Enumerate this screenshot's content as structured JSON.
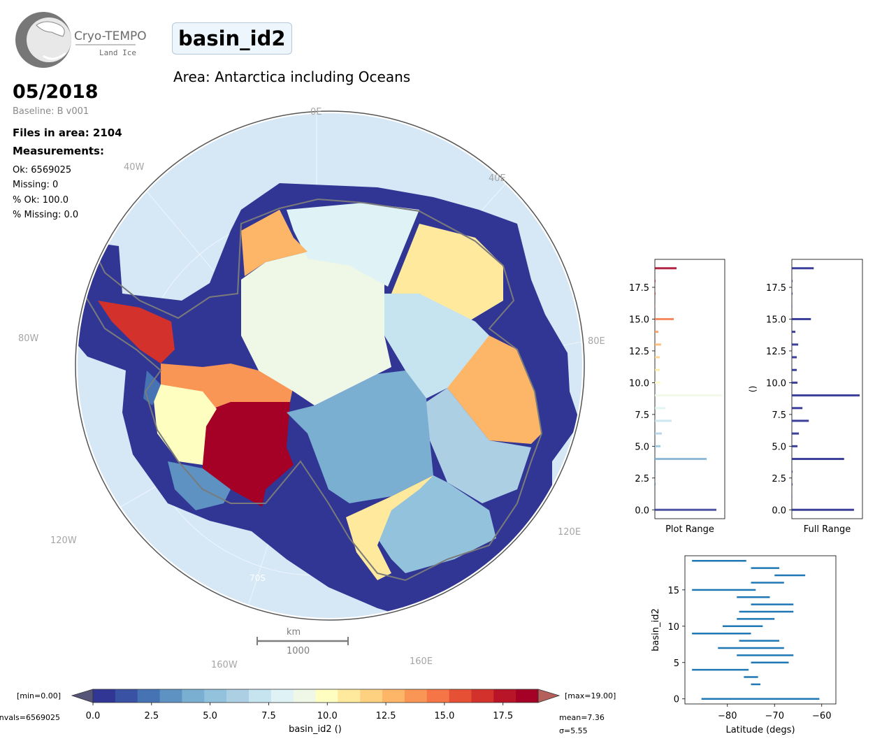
{
  "logo": {
    "name": "Cryo-TEMPO",
    "subtitle": "Land Ice"
  },
  "title": "basin_id2",
  "area_title": "Area: Antarctica including Oceans",
  "date": "05/2018",
  "baseline": "Baseline: B v001",
  "files_in_area": "Files in area: 2104",
  "measurements_label": "Measurements:",
  "stats": [
    "Ok: 6569025",
    "Missing: 0",
    "% Ok: 100.0",
    "% Missing: 0.0"
  ],
  "map": {
    "lon_labels": [
      "0E",
      "40E",
      "80E",
      "120E",
      "160E",
      "160W",
      "120W",
      "80W",
      "40W"
    ],
    "lat_label": "70S",
    "scale_bar": {
      "unit": "km",
      "value": "1000"
    },
    "colors": {
      "ocean": "#d6e7f5",
      "track": "#313695",
      "coast": "#7a7a7a"
    }
  },
  "colorbar": {
    "label": "basin_id2 ()",
    "min_label": "[min=0.00]",
    "max_label": "[max=19.00]",
    "nvals_label": "nvals=6569025",
    "mean_label": "mean=7.36",
    "sigma_label": "σ=5.55",
    "ticks": [
      "0.0",
      "2.5",
      "5.0",
      "7.5",
      "10.0",
      "12.5",
      "15.0",
      "17.5"
    ],
    "colors": [
      "#313695",
      "#3a52a3",
      "#4573b3",
      "#5d92c3",
      "#7aafd2",
      "#93c2dd",
      "#adcfe4",
      "#c6e4ef",
      "#dff2f6",
      "#eff8e6",
      "#fefec0",
      "#fee99c",
      "#fed181",
      "#fdb567",
      "#f99555",
      "#f57546",
      "#e65136",
      "#d2312c",
      "#b81528",
      "#a50026"
    ]
  },
  "chart_data": [
    {
      "type": "bar",
      "orientation": "horizontal",
      "xlabel": "Plot Range",
      "ylabel": "",
      "ylim": [
        -0.7,
        19.7
      ],
      "yticks": [
        "0.0",
        "2.5",
        "5.0",
        "7.5",
        "10.0",
        "12.5",
        "15.0",
        "17.5"
      ],
      "categories": [
        0,
        1,
        2,
        3,
        4,
        5,
        6,
        7,
        8,
        9,
        10,
        11,
        12,
        13,
        14,
        15,
        16,
        17,
        18,
        19
      ],
      "values": [
        88,
        0.5,
        1,
        1,
        74,
        8,
        10,
        24,
        15,
        96,
        8,
        7,
        7,
        9,
        5,
        27,
        0.6,
        1,
        1,
        31
      ]
    },
    {
      "type": "bar",
      "orientation": "horizontal",
      "xlabel": "Full Range",
      "ylabel": "()",
      "ylim": [
        -0.7,
        19.7
      ],
      "yticks": [
        "0.0",
        "2.5",
        "5.0",
        "7.5",
        "10.0",
        "12.5",
        "15.0",
        "17.5"
      ],
      "categories": [
        0,
        1,
        2,
        3,
        4,
        5,
        6,
        7,
        8,
        9,
        10,
        11,
        12,
        13,
        14,
        15,
        16,
        17,
        18,
        19
      ],
      "values": [
        88,
        0.5,
        1,
        1,
        74,
        8,
        10,
        24,
        15,
        96,
        8,
        7,
        7,
        9,
        5,
        27,
        0.6,
        1,
        1,
        31
      ]
    },
    {
      "type": "range",
      "xlabel": "Latitude (degs)",
      "ylabel": "basin_id2",
      "xlim": [
        -89,
        -57
      ],
      "ylim": [
        -0.7,
        19.7
      ],
      "xticks": [
        "−80",
        "−70",
        "−60"
      ],
      "yticks": [
        "0",
        "5",
        "10",
        "15"
      ],
      "ranges": [
        {
          "y": 0,
          "min": -85.5,
          "max": -60.5
        },
        {
          "y": 2,
          "min": -75.0,
          "max": -73.0
        },
        {
          "y": 3,
          "min": -76.5,
          "max": -73.5
        },
        {
          "y": 4,
          "min": -87.5,
          "max": -75.5
        },
        {
          "y": 5,
          "min": -75.0,
          "max": -67.0
        },
        {
          "y": 6,
          "min": -78.0,
          "max": -66.0
        },
        {
          "y": 7,
          "min": -82.0,
          "max": -68.0
        },
        {
          "y": 8,
          "min": -77.5,
          "max": -69.0
        },
        {
          "y": 9,
          "min": -87.5,
          "max": -75.0
        },
        {
          "y": 10,
          "min": -81.0,
          "max": -72.5
        },
        {
          "y": 11,
          "min": -78.0,
          "max": -70.0
        },
        {
          "y": 12,
          "min": -77.5,
          "max": -66.0
        },
        {
          "y": 13,
          "min": -75.0,
          "max": -66.0
        },
        {
          "y": 14,
          "min": -78.0,
          "max": -71.0
        },
        {
          "y": 15,
          "min": -87.5,
          "max": -74.0
        },
        {
          "y": 16,
          "min": -75.0,
          "max": -68.0
        },
        {
          "y": 17,
          "min": -70.0,
          "max": -63.5
        },
        {
          "y": 18,
          "min": -75.0,
          "max": -69.0
        },
        {
          "y": 19,
          "min": -87.5,
          "max": -76.0
        }
      ]
    }
  ]
}
